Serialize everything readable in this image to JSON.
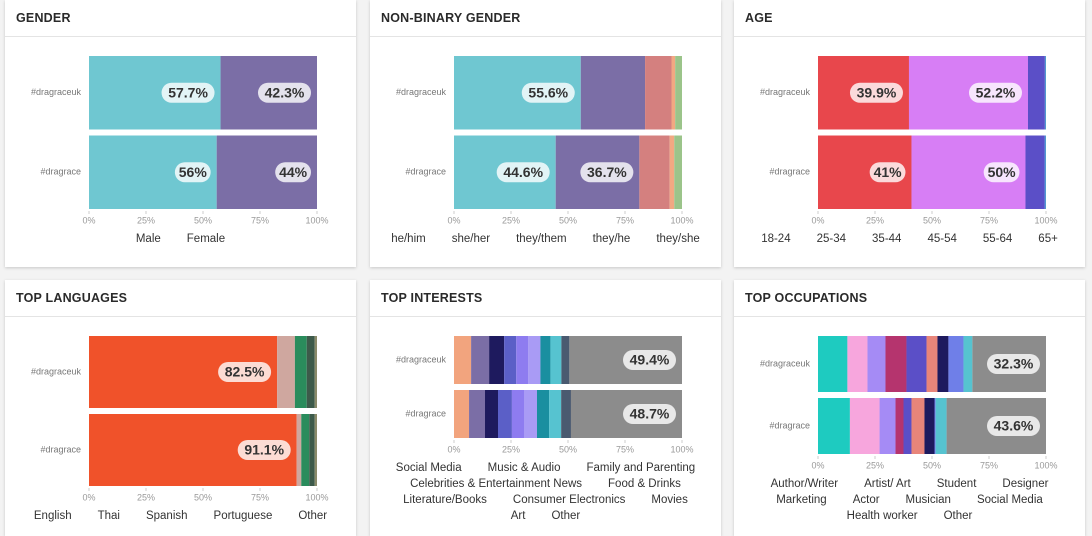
{
  "chart_data": [
    {
      "type": "bar",
      "orientation": "horizontal",
      "stacked": true,
      "title": "GENDER",
      "categories": [
        "#dragraceuk",
        "#dragrace"
      ],
      "series": [
        {
          "name": "Male",
          "color": "#6fc7d1",
          "values": [
            57.7,
            56
          ],
          "value_labels": [
            "57.7%",
            "56%"
          ]
        },
        {
          "name": "Female",
          "color": "#7b6ea6",
          "values": [
            42.3,
            44
          ],
          "value_labels": [
            "42.3%",
            "44%"
          ]
        }
      ],
      "xlim": [
        0,
        100
      ],
      "xticks": [
        {
          "value": 0,
          "label": "0%"
        },
        {
          "value": 25,
          "label": "25%"
        },
        {
          "value": 50,
          "label": "50%"
        },
        {
          "value": 75,
          "label": "75%"
        },
        {
          "value": 100,
          "label": "100%"
        }
      ]
    },
    {
      "type": "bar",
      "orientation": "horizontal",
      "stacked": true,
      "title": "NON-BINARY GENDER",
      "categories": [
        "#dragraceuk",
        "#dragrace"
      ],
      "series": [
        {
          "name": "he/him",
          "color": "#6fc7d1",
          "values": [
            55.6,
            44.6
          ],
          "value_labels": [
            "55.6%",
            "44.6%"
          ]
        },
        {
          "name": "she/her",
          "color": "#7b6ea6",
          "values": [
            28.2,
            36.7
          ],
          "value_labels": [
            null,
            "36.7%"
          ]
        },
        {
          "name": "they/them",
          "color": "#d4807f",
          "values": [
            11.6,
            13.3
          ]
        },
        {
          "name": "they/he",
          "color": "#f2a882",
          "values": [
            1.6,
            2.0
          ]
        },
        {
          "name": "they/she",
          "color": "#9bc48a",
          "values": [
            3.0,
            3.4
          ]
        }
      ],
      "xlim": [
        0,
        100
      ],
      "xticks": [
        {
          "value": 0,
          "label": "0%"
        },
        {
          "value": 25,
          "label": "25%"
        },
        {
          "value": 50,
          "label": "50%"
        },
        {
          "value": 75,
          "label": "75%"
        },
        {
          "value": 100,
          "label": "100%"
        }
      ]
    },
    {
      "type": "bar",
      "orientation": "horizontal",
      "stacked": true,
      "title": "AGE",
      "categories": [
        "#dragraceuk",
        "#dragrace"
      ],
      "series": [
        {
          "name": "18-24",
          "color": "#e8474c",
          "values": [
            39.9,
            41
          ],
          "value_labels": [
            "39.9%",
            "41%"
          ]
        },
        {
          "name": "25-34",
          "color": "#d77ef5",
          "values": [
            52.2,
            50
          ],
          "value_labels": [
            "52.2%",
            "50%"
          ]
        },
        {
          "name": "35-44",
          "color": "#5b4fc7",
          "values": [
            7.4,
            8.4
          ]
        },
        {
          "name": "45-54",
          "color": "#3f7fd6",
          "values": [
            0.4,
            0.5
          ]
        },
        {
          "name": "55-64",
          "color": "#2aa7a0",
          "values": [
            0.1,
            0.1
          ]
        },
        {
          "name": "65+",
          "color": "#9bc48a",
          "values": [
            0,
            0
          ]
        }
      ],
      "xlim": [
        0,
        100
      ],
      "xticks": [
        {
          "value": 0,
          "label": "0%"
        },
        {
          "value": 25,
          "label": "25%"
        },
        {
          "value": 50,
          "label": "50%"
        },
        {
          "value": 75,
          "label": "75%"
        },
        {
          "value": 100,
          "label": "100%"
        }
      ]
    },
    {
      "type": "bar",
      "orientation": "horizontal",
      "stacked": true,
      "title": "TOP LANGUAGES",
      "categories": [
        "#dragraceuk",
        "#dragrace"
      ],
      "series": [
        {
          "name": "English",
          "color": "#f0522a",
          "values": [
            82.5,
            91.1
          ],
          "value_labels": [
            "82.5%",
            "91.1%"
          ]
        },
        {
          "name": "Thai",
          "color": "#cfa79f",
          "values": [
            7.8,
            2.0
          ]
        },
        {
          "name": "Spanish",
          "color": "#2a8c5c",
          "values": [
            5.2,
            3.5
          ]
        },
        {
          "name": "Portuguese",
          "color": "#3d5a4a",
          "values": [
            3.5,
            2.4
          ]
        },
        {
          "name": "Other",
          "color": "#8a8a6a",
          "values": [
            1.0,
            1.0
          ]
        }
      ],
      "xlim": [
        0,
        100
      ],
      "xticks": [
        {
          "value": 0,
          "label": "0%"
        },
        {
          "value": 25,
          "label": "25%"
        },
        {
          "value": 50,
          "label": "50%"
        },
        {
          "value": 75,
          "label": "75%"
        },
        {
          "value": 100,
          "label": "100%"
        }
      ]
    },
    {
      "type": "bar",
      "orientation": "horizontal",
      "stacked": true,
      "title": "TOP INTERESTS",
      "categories": [
        "#dragraceuk",
        "#dragrace"
      ],
      "series": [
        {
          "name": "Social Media",
          "color": "#f2a47e",
          "values": [
            7.5,
            6.6
          ]
        },
        {
          "name": "Music & Audio",
          "color": "#7b6ea6",
          "values": [
            7.9,
            7.0
          ]
        },
        {
          "name": "Family and Parenting",
          "color": "#1e1a5e",
          "values": [
            6.6,
            5.7
          ]
        },
        {
          "name": "Celebrities & Entertainment News",
          "color": "#5b5fc7",
          "values": [
            5.3,
            6.1
          ]
        },
        {
          "name": "Food & Drinks",
          "color": "#8e7cf0",
          "values": [
            5.3,
            5.3
          ]
        },
        {
          "name": "Literature/Books",
          "color": "#a99bf5",
          "values": [
            5.3,
            5.7
          ]
        },
        {
          "name": "Consumer Electronics",
          "color": "#1a8fa0",
          "values": [
            4.4,
            5.3
          ]
        },
        {
          "name": "Movies",
          "color": "#56c3d0",
          "values": [
            4.8,
            5.3
          ]
        },
        {
          "name": "Art",
          "color": "#4a5a70",
          "values": [
            3.5,
            4.3
          ]
        },
        {
          "name": "Other",
          "color": "#8c8c8c",
          "values": [
            49.4,
            48.7
          ],
          "value_labels": [
            "49.4%",
            "48.7%"
          ]
        }
      ],
      "xlim": [
        0,
        100
      ],
      "xticks": [
        {
          "value": 0,
          "label": "0%"
        },
        {
          "value": 25,
          "label": "25%"
        },
        {
          "value": 50,
          "label": "50%"
        },
        {
          "value": 75,
          "label": "75%"
        },
        {
          "value": 100,
          "label": "100%"
        }
      ]
    },
    {
      "type": "bar",
      "orientation": "horizontal",
      "stacked": true,
      "title": "TOP OCCUPATIONS",
      "categories": [
        "#dragraceuk",
        "#dragrace"
      ],
      "series": [
        {
          "name": "Author/Writer",
          "color": "#1ecbc0",
          "values": [
            12.9,
            14.0
          ]
        },
        {
          "name": "Artist/ Art",
          "color": "#f7a6dd",
          "values": [
            8.8,
            13.0
          ]
        },
        {
          "name": "Student",
          "color": "#a58bf5",
          "values": [
            7.9,
            7.0
          ]
        },
        {
          "name": "Designer",
          "color": "#b5346e",
          "values": [
            9.2,
            3.5
          ]
        },
        {
          "name": "Marketing",
          "color": "#5b4fc7",
          "values": [
            8.8,
            3.5
          ]
        },
        {
          "name": "Actor",
          "color": "#e8857a",
          "values": [
            4.8,
            5.7
          ]
        },
        {
          "name": "Musician",
          "color": "#1e1a5e",
          "values": [
            4.8,
            4.4
          ]
        },
        {
          "name": "Social Media",
          "color": "#6f7fe8",
          "values": [
            6.6,
            0.5
          ]
        },
        {
          "name": "Health worker",
          "color": "#56c3d0",
          "values": [
            3.9,
            4.8
          ]
        },
        {
          "name": "Other",
          "color": "#8c8c8c",
          "values": [
            32.3,
            43.6
          ],
          "value_labels": [
            "32.3%",
            "43.6%"
          ]
        }
      ],
      "xlim": [
        0,
        100
      ],
      "xticks": [
        {
          "value": 0,
          "label": "0%"
        },
        {
          "value": 25,
          "label": "25%"
        },
        {
          "value": 50,
          "label": "50%"
        },
        {
          "value": 75,
          "label": "75%"
        },
        {
          "value": 100,
          "label": "100%"
        }
      ]
    }
  ]
}
